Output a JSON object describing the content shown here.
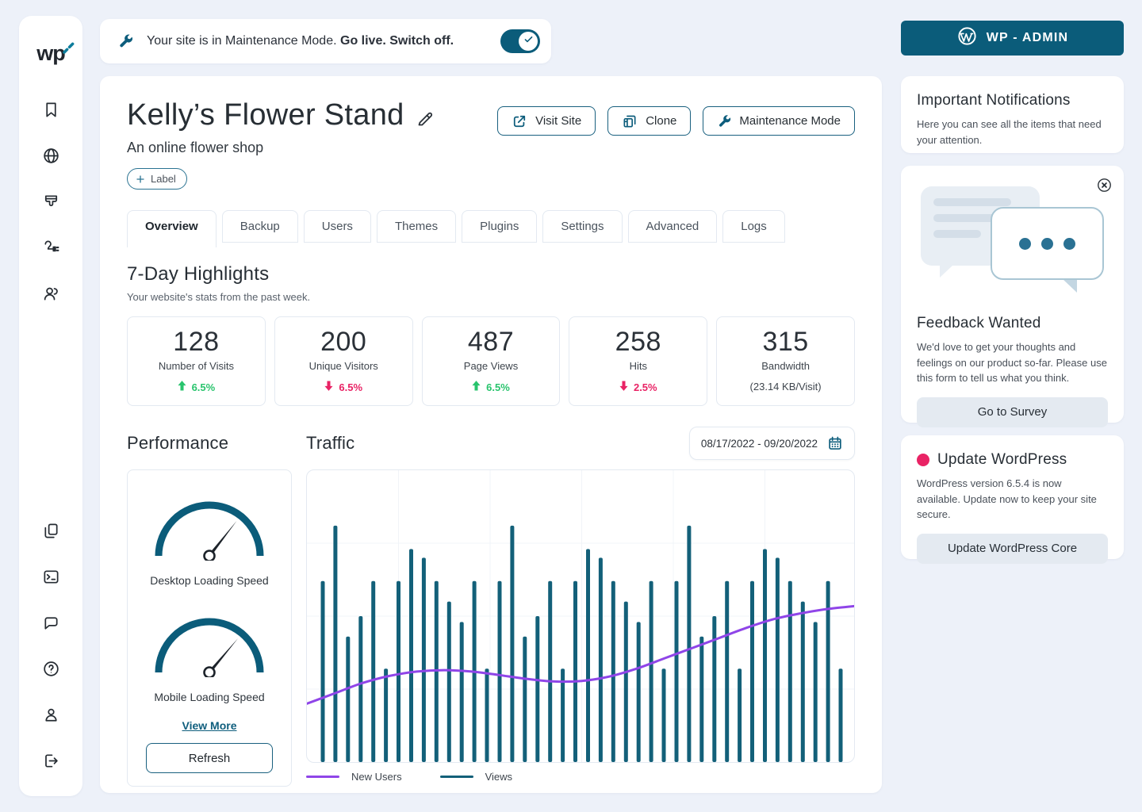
{
  "colors": {
    "teal": "#0b5c7a",
    "bars": "#136079",
    "purple": "#8f45e8",
    "positive": "#29c46d",
    "negative": "#e92365",
    "background": "#edf1f9"
  },
  "sidebar": {
    "logo_text": "wp",
    "top": [
      {
        "id": "bookmarks",
        "icon": "bookmark-icon"
      },
      {
        "id": "domains",
        "icon": "globe-icon"
      },
      {
        "id": "themes",
        "icon": "brush-icon"
      },
      {
        "id": "plugins",
        "icon": "plugin-icon"
      },
      {
        "id": "users",
        "icon": "users-icon"
      }
    ],
    "bottom": [
      {
        "id": "pages",
        "icon": "pages-icon"
      },
      {
        "id": "terminal",
        "icon": "terminal-icon"
      },
      {
        "id": "messages",
        "icon": "chat-icon"
      },
      {
        "id": "help",
        "icon": "help-icon"
      },
      {
        "id": "account",
        "icon": "account-icon"
      },
      {
        "id": "logout",
        "icon": "logout-icon"
      }
    ]
  },
  "banner": {
    "icon": "wrench-icon",
    "text": "Your site is in Maintenance Mode. ",
    "text_bold": "Go live. Switch off.",
    "toggle_state": "on"
  },
  "wp_admin": {
    "label": "WP - ADMIN",
    "icon": "wordpress-icon"
  },
  "site": {
    "title": "Kelly’s Flower Stand",
    "subtitle": "An online flower shop",
    "label_chip": "Label"
  },
  "actions": {
    "visit_site": "Visit Site",
    "clone": "Clone",
    "maintenance_mode": "Maintenance Mode"
  },
  "tabs": {
    "active_index": 0,
    "items": [
      "Overview",
      "Backup",
      "Users",
      "Themes",
      "Plugins",
      "Settings",
      "Advanced",
      "Logs"
    ]
  },
  "highlights": {
    "title": "7-Day Highlights",
    "subtitle": "Your website's stats from the past week.",
    "cards": [
      {
        "value": "128",
        "label": "Number of Visits",
        "delta": "6.5%",
        "direction": "up",
        "icon": "arrow-up-icon"
      },
      {
        "value": "200",
        "label": "Unique Visitors",
        "delta": "6.5%",
        "direction": "down",
        "icon": "arrow-down-icon"
      },
      {
        "value": "487",
        "label": "Page Views",
        "delta": "6.5%",
        "direction": "up",
        "icon": "arrow-up-icon"
      },
      {
        "value": "258",
        "label": "Hits",
        "delta": "2.5%",
        "direction": "down",
        "icon": "arrow-down-icon"
      },
      {
        "value": "315",
        "label": "Bandwidth",
        "delta": "(23.14 KB/Visit)",
        "direction": "none"
      }
    ]
  },
  "performance": {
    "title": "Performance",
    "gauges": [
      {
        "label": "Desktop Loading Speed",
        "needle_deg": 38
      },
      {
        "label": "Mobile Loading Speed",
        "needle_deg": 40
      }
    ],
    "view_more": "View More",
    "refresh": "Refresh"
  },
  "traffic": {
    "title": "Traffic",
    "date_range": "08/17/2022 - 09/20/2022",
    "calendar_icon": "calendar-icon"
  },
  "chart_data": {
    "type": "bar",
    "title": "Traffic",
    "units": "percent_of_plot_height",
    "ylim": [
      0,
      100
    ],
    "grid": true,
    "legend_position": "bottom",
    "series": [
      {
        "name": "Views",
        "render": "bar",
        "color": "#136079",
        "values": [
          62,
          81,
          43,
          50,
          62,
          32,
          62,
          73,
          70,
          62,
          55,
          48,
          62,
          32,
          62,
          81,
          43,
          50,
          62,
          32,
          62,
          73,
          70,
          62,
          55,
          48,
          62,
          32,
          62,
          81,
          43,
          50,
          62,
          32,
          62,
          73,
          70,
          62,
          55,
          48,
          62,
          32
        ]
      },
      {
        "name": "New Users",
        "render": "line",
        "color": "#8f45e8",
        "points": [
          [
            0,
            20
          ],
          [
            5,
            23.5
          ],
          [
            10,
            27
          ],
          [
            15,
            29.5
          ],
          [
            20,
            31
          ],
          [
            25,
            31.5
          ],
          [
            30,
            31
          ],
          [
            35,
            29.8
          ],
          [
            40,
            28.5
          ],
          [
            45,
            27.6
          ],
          [
            50,
            27.8
          ],
          [
            55,
            29.3
          ],
          [
            60,
            32
          ],
          [
            65,
            35.5
          ],
          [
            70,
            39
          ],
          [
            75,
            42.5
          ],
          [
            80,
            46
          ],
          [
            85,
            49
          ],
          [
            90,
            51
          ],
          [
            95,
            52.5
          ],
          [
            100,
            53.5
          ]
        ]
      }
    ],
    "legend_items": [
      {
        "label": "New Users",
        "color": "#8f45e8"
      },
      {
        "label": "Views",
        "color": "#136079"
      }
    ]
  },
  "notifications": {
    "title": "Important Notifications",
    "body": "Here you can see all the items that need your attention."
  },
  "feedback": {
    "title": "Feedback Wanted",
    "body": "We'd love to get your thoughts and feelings on our product so-far. Please use this form to tell us what you think.",
    "button": "Go to Survey",
    "close_icon": "close-icon"
  },
  "update": {
    "title": "Update WordPress",
    "body": "WordPress version 6.5.4 is now available. Update now to keep your site secure.",
    "button": "Update WordPress Core"
  }
}
